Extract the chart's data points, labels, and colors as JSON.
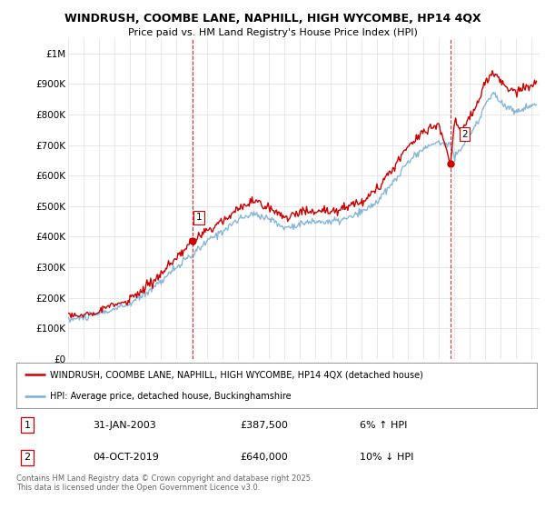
{
  "title_line1": "WINDRUSH, COOMBE LANE, NAPHILL, HIGH WYCOMBE, HP14 4QX",
  "title_line2": "Price paid vs. HM Land Registry's House Price Index (HPI)",
  "ylabel_ticks": [
    "£0",
    "£100K",
    "£200K",
    "£300K",
    "£400K",
    "£500K",
    "£600K",
    "£700K",
    "£800K",
    "£900K",
    "£1M"
  ],
  "ytick_values": [
    0,
    100000,
    200000,
    300000,
    400000,
    500000,
    600000,
    700000,
    800000,
    900000,
    1000000
  ],
  "ylim": [
    0,
    1050000
  ],
  "xlim_start": 1995.0,
  "xlim_end": 2025.5,
  "legend_line1": "WINDRUSH, COOMBE LANE, NAPHILL, HIGH WYCOMBE, HP14 4QX (detached house)",
  "legend_line2": "HPI: Average price, detached house, Buckinghamshire",
  "marker1_year": 2003.08,
  "marker1_value": 387500,
  "marker1_label": "1",
  "marker2_year": 2019.75,
  "marker2_value": 640000,
  "marker2_label": "2",
  "table_data": [
    [
      "1",
      "31-JAN-2003",
      "£387,500",
      "6% ↑ HPI"
    ],
    [
      "2",
      "04-OCT-2019",
      "£640,000",
      "10% ↓ HPI"
    ]
  ],
  "footer": "Contains HM Land Registry data © Crown copyright and database right 2025.\nThis data is licensed under the Open Government Licence v3.0.",
  "property_color": "#cc0000",
  "hpi_color": "#7ab0d4",
  "bg_color": "#ffffff",
  "grid_color": "#dddddd"
}
